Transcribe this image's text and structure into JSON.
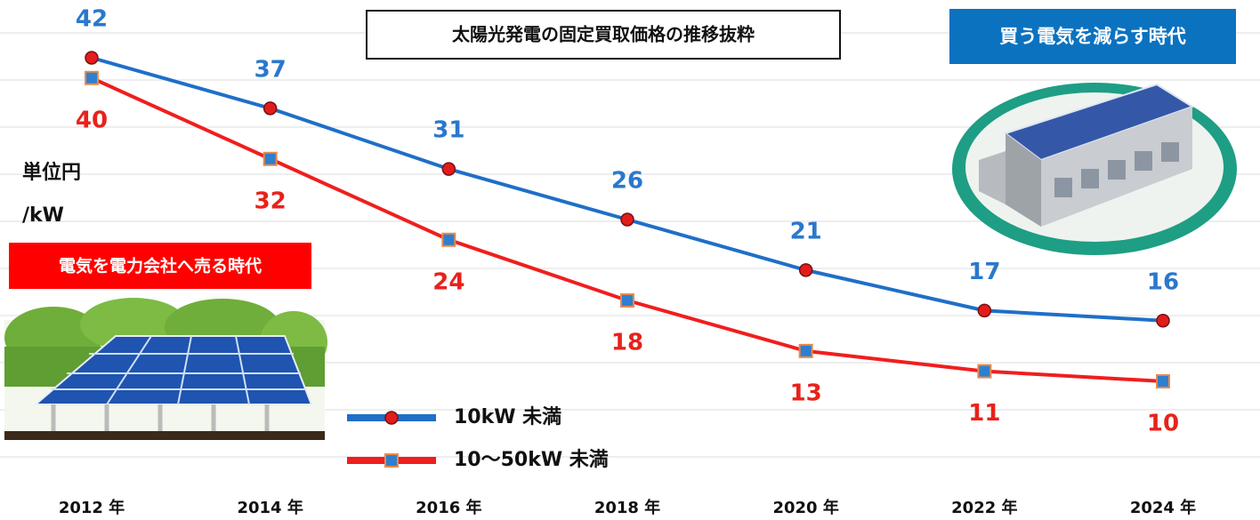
{
  "chart_data": {
    "type": "line",
    "title": "太陽光発電の固定買取価格の推移抜粋",
    "y_label": [
      "単位円",
      "/kW"
    ],
    "annotations": [
      "買う電気を減らす時代",
      "電気を電力会社へ売る時代"
    ],
    "categories": [
      "2012 年",
      "2014 年",
      "2016 年",
      "2018 年",
      "2020 年",
      "2022 年",
      "2024 年"
    ],
    "series": [
      {
        "name": "10kW 未満",
        "color": "#1f6fc8",
        "marker": "circle",
        "marker_color": "#e21c1c",
        "label_color": "#2a78cc",
        "values": [
          42,
          37,
          31,
          26,
          21,
          17,
          16
        ]
      },
      {
        "name": "10～50kW 未満",
        "color": "#f01e1e",
        "marker": "square",
        "marker_color": "#2f7fd0",
        "label_color": "#e8221b",
        "values": [
          40,
          32,
          24,
          18,
          13,
          11,
          10
        ]
      }
    ]
  }
}
